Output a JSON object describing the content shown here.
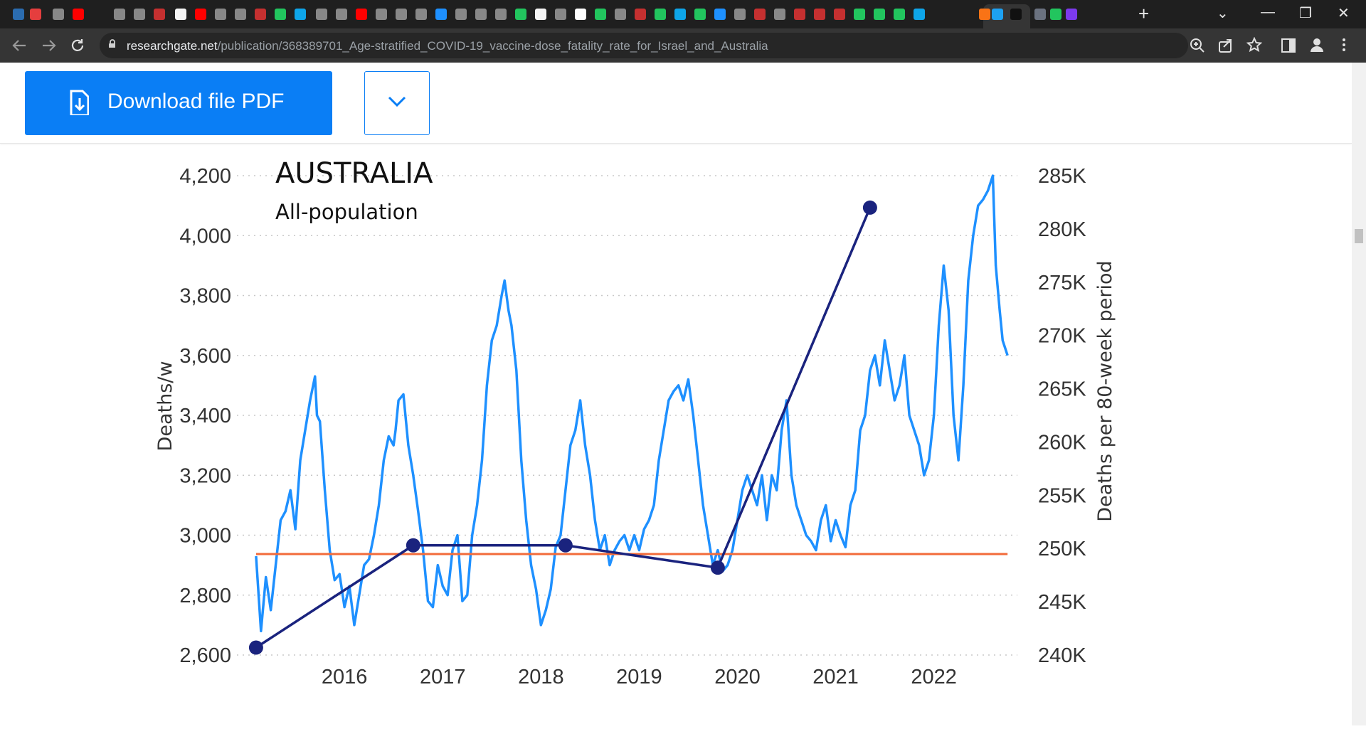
{
  "browser": {
    "url_host": "researchgate.net",
    "url_path": "/publication/368389701_Age-stratified_COVID-19_vaccine-dose_fatality_rate_for_Israel_and_Australia",
    "active_tab_close": "✕",
    "new_tab": "+",
    "window_controls": {
      "dropdown": "⌄",
      "minimize": "—",
      "restore": "❐",
      "close": "✕"
    },
    "tab_favicon_colors": [
      "#2b6cb0",
      "#e53e3e",
      "#888",
      "#ff0000",
      "#888",
      "#888",
      "#c53030",
      "#f5f5f5",
      "#ff0000",
      "#888",
      "#888",
      "#c53030",
      "#22c55e",
      "#0ea5e9",
      "#888",
      "#888",
      "#ff0000",
      "#888",
      "#888",
      "#888",
      "#1e90ff",
      "#888",
      "#888",
      "#888",
      "#22c55e",
      "#f5f5f5",
      "#888",
      "#fff",
      "#22c55e",
      "#888",
      "#c53030",
      "#22c55e",
      "#0ea5e9",
      "#22c55e",
      "#1e90ff",
      "#888",
      "#c53030",
      "#888",
      "#c53030",
      "#c53030",
      "#c53030",
      "#22c55e",
      "#22c55e",
      "#22c55e",
      "#0ea5e9",
      "#f97316",
      "#1da1f2",
      "#111",
      "#6b7280",
      "#22c55e",
      "#7c3aed"
    ],
    "icons": [
      "back-icon",
      "forward-icon",
      "reload-icon",
      "lock-icon",
      "zoom-icon",
      "share-icon",
      "star-icon",
      "sidebar-icon",
      "profile-icon",
      "menu-icon"
    ]
  },
  "header": {
    "download_label": "Download file PDF",
    "download_color": "#0a7ef5"
  },
  "chart_data": {
    "type": "line",
    "title": "AUSTRALIA",
    "subtitle": "All-population",
    "ylabel_left": "Deaths/w",
    "ylabel_right": "Deaths per 80-week period",
    "x_ticks": [
      "2016",
      "2017",
      "2018",
      "2019",
      "2020",
      "2021",
      "2022"
    ],
    "y_left_ticks": [
      "2,600",
      "2,800",
      "3,000",
      "3,200",
      "3,400",
      "3,600",
      "3,800",
      "4,000",
      "4,200"
    ],
    "y_left_range": [
      2600,
      4200
    ],
    "y_right_ticks": [
      "240K",
      "245K",
      "250K",
      "255K",
      "260K",
      "265K",
      "270K",
      "275K",
      "280K",
      "285K"
    ],
    "y_right_range": [
      240000,
      285000
    ],
    "grid": "horizontal-dotted",
    "colors": {
      "weekly": "#1e90ff",
      "period": "#1a237e",
      "baseline": "#f26b3a"
    },
    "series": [
      {
        "x": [
          2015.1,
          2015.15,
          2015.2,
          2015.25,
          2015.3,
          2015.35,
          2015.4,
          2015.45,
          2015.5,
          2015.55,
          2015.6,
          2015.65,
          2015.7,
          2015.72,
          2015.75,
          2015.8,
          2015.85,
          2015.9,
          2015.95,
          2016.0,
          2016.05,
          2016.1,
          2016.15,
          2016.2,
          2016.25,
          2016.3,
          2016.35,
          2016.4,
          2016.45,
          2016.5,
          2016.52,
          2016.55,
          2016.6,
          2016.65,
          2016.7,
          2016.75,
          2016.8,
          2016.85,
          2016.9,
          2016.95,
          2017.0,
          2017.05,
          2017.1,
          2017.15,
          2017.2,
          2017.25,
          2017.3,
          2017.35,
          2017.4,
          2017.45,
          2017.5,
          2017.55,
          2017.6,
          2017.63,
          2017.67,
          2017.7,
          2017.75,
          2017.8,
          2017.85,
          2017.9,
          2017.95,
          2018.0,
          2018.05,
          2018.1,
          2018.15,
          2018.2,
          2018.25,
          2018.3,
          2018.35,
          2018.4,
          2018.45,
          2018.5,
          2018.55,
          2018.6,
          2018.65,
          2018.7,
          2018.75,
          2018.8,
          2018.85,
          2018.9,
          2018.95,
          2019.0,
          2019.05,
          2019.1,
          2019.15,
          2019.2,
          2019.25,
          2019.3,
          2019.35,
          2019.4,
          2019.45,
          2019.5,
          2019.55,
          2019.6,
          2019.65,
          2019.7,
          2019.75,
          2019.8,
          2019.85,
          2019.9,
          2019.95,
          2020.0,
          2020.05,
          2020.1,
          2020.15,
          2020.2,
          2020.25,
          2020.3,
          2020.35,
          2020.4,
          2020.45,
          2020.5,
          2020.55,
          2020.6,
          2020.65,
          2020.7,
          2020.75,
          2020.8,
          2020.85,
          2020.9,
          2020.95,
          2021.0,
          2021.05,
          2021.1,
          2021.15,
          2021.2,
          2021.25,
          2021.3,
          2021.35,
          2021.4,
          2021.45,
          2021.5,
          2021.55,
          2021.6,
          2021.65,
          2021.7,
          2021.75,
          2021.8,
          2021.85,
          2021.9,
          2021.95,
          2022.0,
          2022.05,
          2022.1,
          2022.15,
          2022.2,
          2022.25,
          2022.3,
          2022.35,
          2022.4,
          2022.45,
          2022.5,
          2022.55,
          2022.6,
          2022.63,
          2022.67,
          2022.7,
          2022.75
        ],
        "y": [
          2930,
          2680,
          2860,
          2750,
          2900,
          3050,
          3080,
          3150,
          3020,
          3250,
          3350,
          3450,
          3530,
          3400,
          3380,
          3150,
          2950,
          2850,
          2870,
          2760,
          2830,
          2700,
          2800,
          2900,
          2920,
          3000,
          3100,
          3250,
          3330,
          3300,
          3350,
          3450,
          3470,
          3300,
          3200,
          3080,
          2950,
          2780,
          2760,
          2900,
          2830,
          2800,
          2950,
          3000,
          2780,
          2800,
          3000,
          3100,
          3250,
          3500,
          3650,
          3700,
          3800,
          3850,
          3750,
          3700,
          3550,
          3250,
          3050,
          2900,
          2820,
          2700,
          2750,
          2820,
          2960,
          3000,
          3150,
          3300,
          3350,
          3450,
          3300,
          3200,
          3050,
          2950,
          3000,
          2900,
          2950,
          2980,
          3000,
          2950,
          3000,
          2950,
          3020,
          3050,
          3100,
          3250,
          3350,
          3450,
          3480,
          3500,
          3450,
          3520,
          3400,
          3250,
          3100,
          3000,
          2900,
          2950,
          2880,
          2900,
          2950,
          3050,
          3150,
          3200,
          3150,
          3100,
          3200,
          3050,
          3200,
          3150,
          3350,
          3450,
          3200,
          3100,
          3050,
          3000,
          2980,
          2950,
          3050,
          3100,
          2980,
          3050,
          3000,
          2960,
          3100,
          3150,
          3350,
          3400,
          3550,
          3600,
          3500,
          3650,
          3550,
          3450,
          3500,
          3600,
          3400,
          3350,
          3300,
          3200,
          3250,
          3400,
          3700,
          3900,
          3750,
          3400,
          3250,
          3500,
          3850,
          4000,
          4100,
          4120,
          4150,
          4200,
          3900,
          3750,
          3650,
          3600
        ]
      },
      {
        "x": [
          2015.1,
          2016.7,
          2018.25,
          2019.8,
          2021.35
        ],
        "y": [
          240700,
          250300,
          250300,
          248200,
          282000
        ]
      },
      {
        "x": [
          2015.1,
          2022.75
        ],
        "y": [
          2937,
          2937
        ]
      }
    ]
  }
}
